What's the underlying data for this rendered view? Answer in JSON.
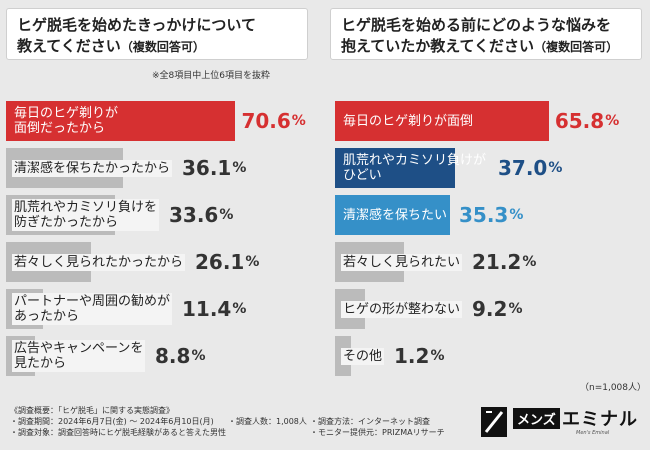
{
  "left_panel": {
    "title_line1": "ヒゲ脱毛を始めたきっかけについて",
    "title_line2": "教えてください",
    "title_sub": "（複数回答可）",
    "note": "※全8項目中上位6項目を抜粋"
  },
  "right_panel": {
    "title_line1": "ヒゲ脱毛を始める前にどのような悩みを",
    "title_line2": "抱えていたか教えてください",
    "title_sub": "（複数回答可）",
    "n_note": "（n=1,008人）"
  },
  "chart_data": [
    {
      "type": "bar",
      "orientation": "horizontal",
      "title": "ヒゲ脱毛を始めたきっかけについて教えてください（複数回答可）",
      "unit": "%",
      "xlim": [
        0,
        100
      ],
      "categories": [
        "毎日のヒゲ剃りが面倒だったから",
        "清潔感を保ちたかったから",
        "肌荒れやカミソリ負けを防ぎたかったから",
        "若々しく見られたかったから",
        "パートナーや周囲の勧めがあったから",
        "広告やキャンペーンを見たから"
      ],
      "label_lines": [
        [
          "毎日のヒゲ剃りが",
          "面倒だったから"
        ],
        [
          "清潔感を保ちたかったから"
        ],
        [
          "肌荒れやカミソリ負けを",
          "防ぎたかったから"
        ],
        [
          "若々しく見られたかったから"
        ],
        [
          "パートナーや周囲の勧めが",
          "あったから"
        ],
        [
          "広告やキャンペーンを",
          "見たから"
        ]
      ],
      "values": [
        70.6,
        36.1,
        33.6,
        26.1,
        11.4,
        8.8
      ],
      "value_labels": [
        "70.6",
        "36.1",
        "33.6",
        "26.1",
        "11.4",
        "8.8"
      ],
      "bar_colors": [
        "#d63031",
        "#bbbbbb",
        "#bbbbbb",
        "#bbbbbb",
        "#bbbbbb",
        "#bbbbbb"
      ],
      "value_colors": [
        "#d63031",
        "#333333",
        "#333333",
        "#333333",
        "#333333",
        "#333333"
      ]
    },
    {
      "type": "bar",
      "orientation": "horizontal",
      "title": "ヒゲ脱毛を始める前にどのような悩みを抱えていたか教えてください（複数回答可）",
      "unit": "%",
      "xlim": [
        0,
        100
      ],
      "categories": [
        "毎日のヒゲ剃りが面倒",
        "肌荒れやカミソリ負けがひどい",
        "清潔感を保ちたい",
        "若々しく見られたい",
        "ヒゲの形が整わない",
        "その他"
      ],
      "label_lines": [
        [
          "毎日のヒゲ剃りが面倒"
        ],
        [
          "肌荒れやカミソリ負けが",
          "ひどい"
        ],
        [
          "清潔感を保ちたい"
        ],
        [
          "若々しく見られたい"
        ],
        [
          "ヒゲの形が整わない"
        ],
        [
          "その他"
        ]
      ],
      "values": [
        65.8,
        37.0,
        35.3,
        21.2,
        9.2,
        1.2
      ],
      "value_labels": [
        "65.8",
        "37.0",
        "35.3",
        "21.2",
        "9.2",
        "1.2"
      ],
      "bar_colors": [
        "#d63031",
        "#1e4f86",
        "#3590c8",
        "#bbbbbb",
        "#bbbbbb",
        "#bbbbbb"
      ],
      "value_colors": [
        "#d63031",
        "#1e4f86",
        "#3590c8",
        "#333333",
        "#333333",
        "#333333"
      ]
    }
  ],
  "percent_sign": "%",
  "footer": {
    "overview": "《調査概要：「ヒゲ脱毛」に関する実態調査》",
    "period": "・調査期間：2024年6月7日(金) ～ 2024年6月10日(月)",
    "count": "・調査人数：1,008人",
    "method": "・調査方法：インターネット調査",
    "target": "・調査対象：調査回答時にヒゲ脱毛経験があると答えた男性",
    "provider": "・モニター提供元：PRIZMAリサーチ"
  },
  "logo": {
    "mens": "メンズ",
    "name": "エミナル",
    "tagline": "Men's Eminal"
  }
}
